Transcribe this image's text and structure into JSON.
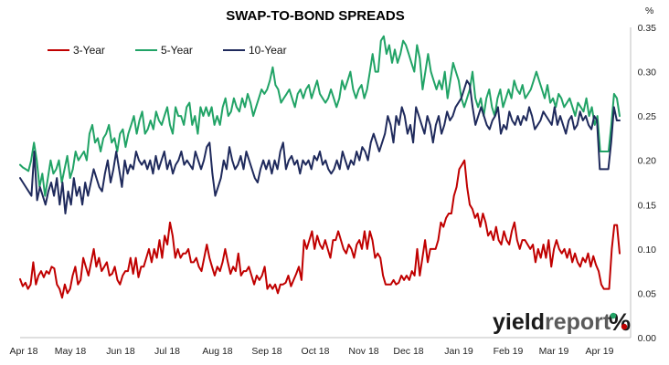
{
  "chart_data": {
    "type": "line",
    "title": "SWAP-TO-BOND SPREADS",
    "y_unit": "%",
    "ylim": [
      0,
      0.35
    ],
    "y_ticks": [
      "0.00",
      "0.05",
      "0.10",
      "0.15",
      "0.20",
      "0.25",
      "0.30",
      "0.35"
    ],
    "y_axis_side": "right",
    "x_tick_labels": [
      "Apr 18",
      "May 18",
      "Jun 18",
      "Jul 18",
      "Aug 18",
      "Sep 18",
      "Oct 18",
      "Nov 18",
      "Dec 18",
      "Jan 19",
      "Feb 19",
      "Mar 19",
      "Apr 19"
    ],
    "grid": false,
    "legend_position": "top-left",
    "series": [
      {
        "name": "3-Year",
        "color": "#c00000",
        "values": [
          0.066,
          0.058,
          0.062,
          0.055,
          0.06,
          0.085,
          0.06,
          0.07,
          0.075,
          0.068,
          0.075,
          0.072,
          0.08,
          0.078,
          0.06,
          0.055,
          0.045,
          0.06,
          0.05,
          0.055,
          0.07,
          0.08,
          0.06,
          0.065,
          0.09,
          0.08,
          0.07,
          0.085,
          0.1,
          0.08,
          0.09,
          0.075,
          0.08,
          0.085,
          0.07,
          0.072,
          0.08,
          0.065,
          0.06,
          0.07,
          0.075,
          0.075,
          0.09,
          0.072,
          0.09,
          0.068,
          0.08,
          0.08,
          0.09,
          0.1,
          0.085,
          0.1,
          0.09,
          0.11,
          0.09,
          0.115,
          0.105,
          0.13,
          0.115,
          0.09,
          0.1,
          0.09,
          0.095,
          0.095,
          0.1,
          0.085,
          0.085,
          0.09,
          0.08,
          0.075,
          0.09,
          0.105,
          0.09,
          0.08,
          0.07,
          0.08,
          0.075,
          0.085,
          0.1,
          0.085,
          0.072,
          0.08,
          0.075,
          0.095,
          0.07,
          0.075,
          0.075,
          0.08,
          0.07,
          0.06,
          0.07,
          0.065,
          0.07,
          0.08,
          0.055,
          0.06,
          0.055,
          0.06,
          0.05,
          0.06,
          0.06,
          0.062,
          0.07,
          0.058,
          0.065,
          0.072,
          0.08,
          0.065,
          0.11,
          0.1,
          0.11,
          0.12,
          0.1,
          0.115,
          0.105,
          0.1,
          0.11,
          0.1,
          0.09,
          0.11,
          0.11,
          0.12,
          0.11,
          0.1,
          0.095,
          0.105,
          0.1,
          0.09,
          0.105,
          0.11,
          0.1,
          0.12,
          0.1,
          0.12,
          0.11,
          0.09,
          0.095,
          0.09,
          0.07,
          0.06,
          0.06,
          0.06,
          0.065,
          0.06,
          0.062,
          0.07,
          0.065,
          0.07,
          0.065,
          0.075,
          0.07,
          0.1,
          0.07,
          0.09,
          0.11,
          0.085,
          0.1,
          0.1,
          0.1,
          0.11,
          0.13,
          0.125,
          0.135,
          0.14,
          0.14,
          0.16,
          0.17,
          0.19,
          0.195,
          0.2,
          0.17,
          0.15,
          0.145,
          0.135,
          0.14,
          0.125,
          0.14,
          0.13,
          0.115,
          0.12,
          0.11,
          0.125,
          0.11,
          0.105,
          0.12,
          0.11,
          0.105,
          0.12,
          0.13,
          0.11,
          0.1,
          0.11,
          0.11,
          0.105,
          0.1,
          0.105,
          0.085,
          0.1,
          0.09,
          0.105,
          0.09,
          0.11,
          0.08,
          0.1,
          0.11,
          0.1,
          0.095,
          0.1,
          0.09,
          0.1,
          0.085,
          0.095,
          0.085,
          0.08,
          0.09,
          0.085,
          0.095,
          0.08,
          0.092,
          0.082,
          0.075,
          0.06,
          0.055,
          0.055,
          0.055,
          0.1,
          0.127,
          0.127,
          0.095
        ]
      },
      {
        "name": "5-Year",
        "color": "#21a366",
        "values": [
          0.195,
          0.192,
          0.19,
          0.188,
          0.2,
          0.22,
          0.2,
          0.17,
          0.185,
          0.16,
          0.18,
          0.2,
          0.185,
          0.19,
          0.2,
          0.175,
          0.19,
          0.205,
          0.18,
          0.19,
          0.21,
          0.2,
          0.205,
          0.21,
          0.2,
          0.23,
          0.24,
          0.22,
          0.225,
          0.21,
          0.225,
          0.23,
          0.24,
          0.22,
          0.225,
          0.21,
          0.23,
          0.235,
          0.215,
          0.23,
          0.24,
          0.25,
          0.23,
          0.245,
          0.255,
          0.23,
          0.235,
          0.245,
          0.235,
          0.255,
          0.245,
          0.24,
          0.25,
          0.26,
          0.24,
          0.23,
          0.26,
          0.25,
          0.25,
          0.24,
          0.26,
          0.265,
          0.24,
          0.25,
          0.23,
          0.26,
          0.25,
          0.26,
          0.25,
          0.26,
          0.24,
          0.25,
          0.24,
          0.26,
          0.27,
          0.25,
          0.255,
          0.27,
          0.26,
          0.255,
          0.27,
          0.26,
          0.275,
          0.265,
          0.25,
          0.26,
          0.27,
          0.28,
          0.275,
          0.28,
          0.29,
          0.305,
          0.285,
          0.28,
          0.265,
          0.27,
          0.275,
          0.28,
          0.27,
          0.26,
          0.275,
          0.28,
          0.27,
          0.28,
          0.285,
          0.27,
          0.28,
          0.29,
          0.275,
          0.27,
          0.265,
          0.27,
          0.28,
          0.27,
          0.26,
          0.27,
          0.29,
          0.28,
          0.29,
          0.3,
          0.28,
          0.27,
          0.28,
          0.285,
          0.27,
          0.28,
          0.3,
          0.32,
          0.3,
          0.3,
          0.335,
          0.34,
          0.32,
          0.33,
          0.31,
          0.325,
          0.31,
          0.32,
          0.335,
          0.33,
          0.32,
          0.31,
          0.3,
          0.33,
          0.315,
          0.28,
          0.3,
          0.32,
          0.3,
          0.29,
          0.28,
          0.29,
          0.28,
          0.3,
          0.27,
          0.29,
          0.31,
          0.3,
          0.29,
          0.27,
          0.26,
          0.27,
          0.28,
          0.3,
          0.27,
          0.26,
          0.27,
          0.25,
          0.27,
          0.28,
          0.26,
          0.25,
          0.27,
          0.28,
          0.26,
          0.27,
          0.28,
          0.27,
          0.29,
          0.28,
          0.275,
          0.285,
          0.27,
          0.275,
          0.28,
          0.29,
          0.3,
          0.29,
          0.28,
          0.27,
          0.285,
          0.265,
          0.27,
          0.26,
          0.275,
          0.27,
          0.26,
          0.265,
          0.27,
          0.26,
          0.25,
          0.265,
          0.26,
          0.255,
          0.27,
          0.25,
          0.26,
          0.24,
          0.25,
          0.21,
          0.21,
          0.21,
          0.21,
          0.24,
          0.275,
          0.27,
          0.25
        ]
      },
      {
        "name": "10-Year",
        "color": "#1f2a5c",
        "values": [
          0.18,
          0.175,
          0.17,
          0.165,
          0.16,
          0.21,
          0.155,
          0.17,
          0.16,
          0.15,
          0.165,
          0.175,
          0.16,
          0.18,
          0.15,
          0.175,
          0.14,
          0.165,
          0.15,
          0.18,
          0.16,
          0.17,
          0.15,
          0.175,
          0.16,
          0.175,
          0.19,
          0.18,
          0.17,
          0.165,
          0.185,
          0.2,
          0.175,
          0.19,
          0.21,
          0.19,
          0.17,
          0.2,
          0.185,
          0.195,
          0.19,
          0.21,
          0.2,
          0.195,
          0.2,
          0.19,
          0.2,
          0.185,
          0.205,
          0.19,
          0.2,
          0.21,
          0.19,
          0.2,
          0.185,
          0.195,
          0.2,
          0.21,
          0.195,
          0.2,
          0.195,
          0.19,
          0.21,
          0.2,
          0.19,
          0.2,
          0.215,
          0.22,
          0.185,
          0.16,
          0.17,
          0.18,
          0.2,
          0.19,
          0.215,
          0.2,
          0.19,
          0.195,
          0.205,
          0.19,
          0.21,
          0.2,
          0.19,
          0.18,
          0.175,
          0.19,
          0.2,
          0.19,
          0.2,
          0.185,
          0.2,
          0.19,
          0.21,
          0.22,
          0.19,
          0.2,
          0.205,
          0.195,
          0.2,
          0.185,
          0.2,
          0.195,
          0.2,
          0.19,
          0.205,
          0.2,
          0.21,
          0.195,
          0.2,
          0.19,
          0.185,
          0.19,
          0.2,
          0.19,
          0.21,
          0.2,
          0.19,
          0.2,
          0.195,
          0.21,
          0.2,
          0.215,
          0.21,
          0.2,
          0.22,
          0.23,
          0.22,
          0.21,
          0.22,
          0.23,
          0.25,
          0.24,
          0.22,
          0.25,
          0.24,
          0.26,
          0.25,
          0.23,
          0.24,
          0.22,
          0.26,
          0.25,
          0.24,
          0.23,
          0.25,
          0.24,
          0.22,
          0.24,
          0.25,
          0.23,
          0.24,
          0.255,
          0.245,
          0.25,
          0.26,
          0.265,
          0.27,
          0.28,
          0.29,
          0.285,
          0.26,
          0.24,
          0.25,
          0.26,
          0.25,
          0.24,
          0.235,
          0.245,
          0.25,
          0.26,
          0.23,
          0.24,
          0.235,
          0.255,
          0.245,
          0.24,
          0.25,
          0.24,
          0.25,
          0.245,
          0.26,
          0.25,
          0.235,
          0.24,
          0.245,
          0.255,
          0.25,
          0.245,
          0.24,
          0.26,
          0.24,
          0.25,
          0.24,
          0.23,
          0.245,
          0.25,
          0.235,
          0.24,
          0.255,
          0.245,
          0.25,
          0.24,
          0.235,
          0.25,
          0.245,
          0.19,
          0.19,
          0.19,
          0.19,
          0.22,
          0.26,
          0.245,
          0.245
        ]
      }
    ]
  },
  "branding": {
    "logo_text_main": "yield",
    "logo_text_sub": "report",
    "logo_symbol": "%",
    "logo_symbol_colors": [
      "#21a366",
      "#c00000"
    ]
  }
}
